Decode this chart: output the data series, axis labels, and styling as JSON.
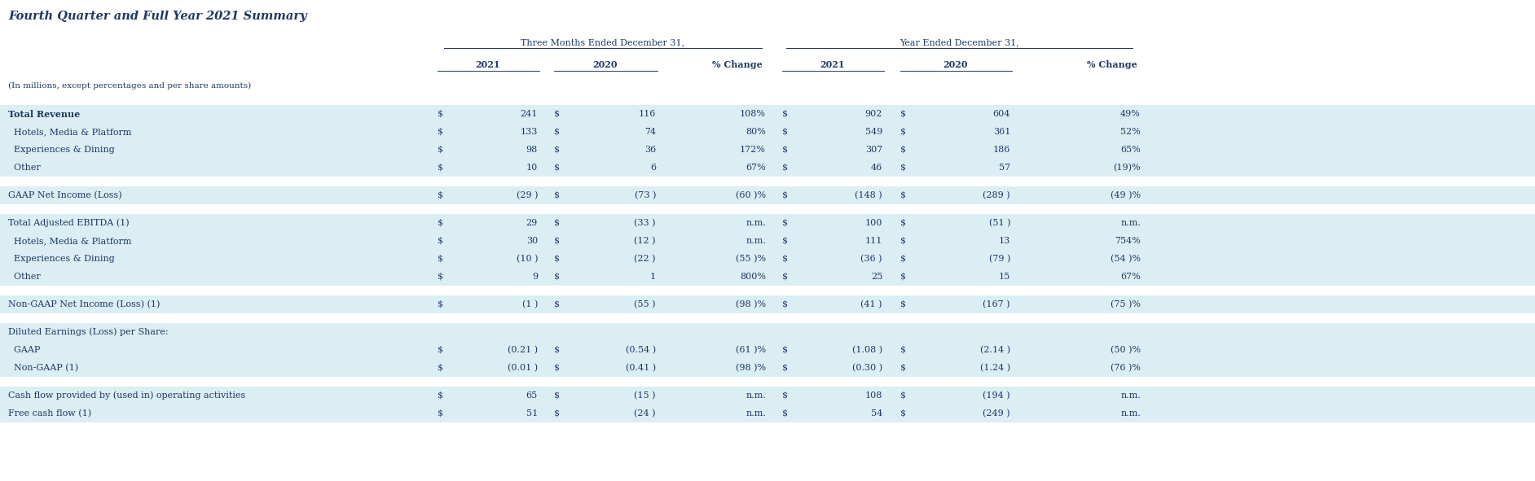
{
  "title": "Fourth Quarter and Full Year 2021 Summary",
  "subtitle": "(In millions, except percentages and per share amounts)",
  "col_header_group1": "Three Months Ended December 31,",
  "col_header_group2": "Year Ended December 31,",
  "rows": [
    {
      "label": "Total Revenue",
      "bold": true,
      "bg": "light",
      "q_s1": "$",
      "q_v1": "241",
      "q_s2": "$",
      "q_v2": "116",
      "q_pct": "108%",
      "y_s1": "$",
      "y_v1": "902",
      "y_s2": "$",
      "y_v2": "604",
      "y_pct": "49%"
    },
    {
      "label": "  Hotels, Media & Platform",
      "bold": false,
      "bg": "light",
      "q_s1": "$",
      "q_v1": "133",
      "q_s2": "$",
      "q_v2": "74",
      "q_pct": "80%",
      "y_s1": "$",
      "y_v1": "549",
      "y_s2": "$",
      "y_v2": "361",
      "y_pct": "52%"
    },
    {
      "label": "  Experiences & Dining",
      "bold": false,
      "bg": "light",
      "q_s1": "$",
      "q_v1": "98",
      "q_s2": "$",
      "q_v2": "36",
      "q_pct": "172%",
      "y_s1": "$",
      "y_v1": "307",
      "y_s2": "$",
      "y_v2": "186",
      "y_pct": "65%"
    },
    {
      "label": "  Other",
      "bold": false,
      "bg": "light",
      "q_s1": "$",
      "q_v1": "10",
      "q_s2": "$",
      "q_v2": "6",
      "q_pct": "67%",
      "y_s1": "$",
      "y_v1": "46",
      "y_s2": "$",
      "y_v2": "57",
      "y_pct": "(19)%"
    },
    {
      "label": "",
      "bold": false,
      "bg": "white",
      "q_s1": "",
      "q_v1": "",
      "q_s2": "",
      "q_v2": "",
      "q_pct": "",
      "y_s1": "",
      "y_v1": "",
      "y_s2": "",
      "y_v2": "",
      "y_pct": ""
    },
    {
      "label": "GAAP Net Income (Loss)",
      "bold": false,
      "bg": "light",
      "q_s1": "$",
      "q_v1": "(29 )",
      "q_s2": "$",
      "q_v2": "(73 )",
      "q_pct": "(60 )%",
      "y_s1": "$",
      "y_v1": "(148 )",
      "y_s2": "$",
      "y_v2": "(289 )",
      "y_pct": "(49 )%"
    },
    {
      "label": "",
      "bold": false,
      "bg": "white",
      "q_s1": "",
      "q_v1": "",
      "q_s2": "",
      "q_v2": "",
      "q_pct": "",
      "y_s1": "",
      "y_v1": "",
      "y_s2": "",
      "y_v2": "",
      "y_pct": ""
    },
    {
      "label": "Total Adjusted EBITDA (1)",
      "bold": false,
      "bg": "light",
      "q_s1": "$",
      "q_v1": "29",
      "q_s2": "$",
      "q_v2": "(33 )",
      "q_pct": "n.m.",
      "y_s1": "$",
      "y_v1": "100",
      "y_s2": "$",
      "y_v2": "(51 )",
      "y_pct": "n.m."
    },
    {
      "label": "  Hotels, Media & Platform",
      "bold": false,
      "bg": "light",
      "q_s1": "$",
      "q_v1": "30",
      "q_s2": "$",
      "q_v2": "(12 )",
      "q_pct": "n.m.",
      "y_s1": "$",
      "y_v1": "111",
      "y_s2": "$",
      "y_v2": "13",
      "y_pct": "754%"
    },
    {
      "label": "  Experiences & Dining",
      "bold": false,
      "bg": "light",
      "q_s1": "$",
      "q_v1": "(10 )",
      "q_s2": "$",
      "q_v2": "(22 )",
      "q_pct": "(55 )%",
      "y_s1": "$",
      "y_v1": "(36 )",
      "y_s2": "$",
      "y_v2": "(79 )",
      "y_pct": "(54 )%"
    },
    {
      "label": "  Other",
      "bold": false,
      "bg": "light",
      "q_s1": "$",
      "q_v1": "9",
      "q_s2": "$",
      "q_v2": "1",
      "q_pct": "800%",
      "y_s1": "$",
      "y_v1": "25",
      "y_s2": "$",
      "y_v2": "15",
      "y_pct": "67%"
    },
    {
      "label": "",
      "bold": false,
      "bg": "white",
      "q_s1": "",
      "q_v1": "",
      "q_s2": "",
      "q_v2": "",
      "q_pct": "",
      "y_s1": "",
      "y_v1": "",
      "y_s2": "",
      "y_v2": "",
      "y_pct": ""
    },
    {
      "label": "Non-GAAP Net Income (Loss) (1)",
      "bold": false,
      "bg": "light",
      "q_s1": "$",
      "q_v1": "(1 )",
      "q_s2": "$",
      "q_v2": "(55 )",
      "q_pct": "(98 )%",
      "y_s1": "$",
      "y_v1": "(41 )",
      "y_s2": "$",
      "y_v2": "(167 )",
      "y_pct": "(75 )%"
    },
    {
      "label": "",
      "bold": false,
      "bg": "white",
      "q_s1": "",
      "q_v1": "",
      "q_s2": "",
      "q_v2": "",
      "q_pct": "",
      "y_s1": "",
      "y_v1": "",
      "y_s2": "",
      "y_v2": "",
      "y_pct": ""
    },
    {
      "label": "Diluted Earnings (Loss) per Share:",
      "bold": false,
      "bg": "light",
      "q_s1": "",
      "q_v1": "",
      "q_s2": "",
      "q_v2": "",
      "q_pct": "",
      "y_s1": "",
      "y_v1": "",
      "y_s2": "",
      "y_v2": "",
      "y_pct": ""
    },
    {
      "label": "  GAAP",
      "bold": false,
      "bg": "light",
      "q_s1": "$",
      "q_v1": "(0.21 )",
      "q_s2": "$",
      "q_v2": "(0.54 )",
      "q_pct": "(61 )%",
      "y_s1": "$",
      "y_v1": "(1.08 )",
      "y_s2": "$",
      "y_v2": "(2.14 )",
      "y_pct": "(50 )%"
    },
    {
      "label": "  Non-GAAP (1)",
      "bold": false,
      "bg": "light",
      "q_s1": "$",
      "q_v1": "(0.01 )",
      "q_s2": "$",
      "q_v2": "(0.41 )",
      "q_pct": "(98 )%",
      "y_s1": "$",
      "y_v1": "(0.30 )",
      "y_s2": "$",
      "y_v2": "(1.24 )",
      "y_pct": "(76 )%"
    },
    {
      "label": "",
      "bold": false,
      "bg": "white",
      "q_s1": "",
      "q_v1": "",
      "q_s2": "",
      "q_v2": "",
      "q_pct": "",
      "y_s1": "",
      "y_v1": "",
      "y_s2": "",
      "y_v2": "",
      "y_pct": ""
    },
    {
      "label": "Cash flow provided by (used in) operating activities",
      "bold": false,
      "bg": "light",
      "q_s1": "$",
      "q_v1": "65",
      "q_s2": "$",
      "q_v2": "(15 )",
      "q_pct": "n.m.",
      "y_s1": "$",
      "y_v1": "108",
      "y_s2": "$",
      "y_v2": "(194 )",
      "y_pct": "n.m."
    },
    {
      "label": "Free cash flow (1)",
      "bold": false,
      "bg": "light",
      "q_s1": "$",
      "q_v1": "51",
      "q_s2": "$",
      "q_v2": "(24 )",
      "q_pct": "n.m.",
      "y_s1": "$",
      "y_v1": "54",
      "y_s2": "$",
      "y_v2": "(249 )",
      "y_pct": "n.m."
    }
  ],
  "bg_light": "#daeef3",
  "bg_white": "#ffffff",
  "text_color": "#1f3864",
  "line_color": "#1f3864",
  "title_color": "#1f3864",
  "font_size": 8.0,
  "title_font_size": 10.5
}
